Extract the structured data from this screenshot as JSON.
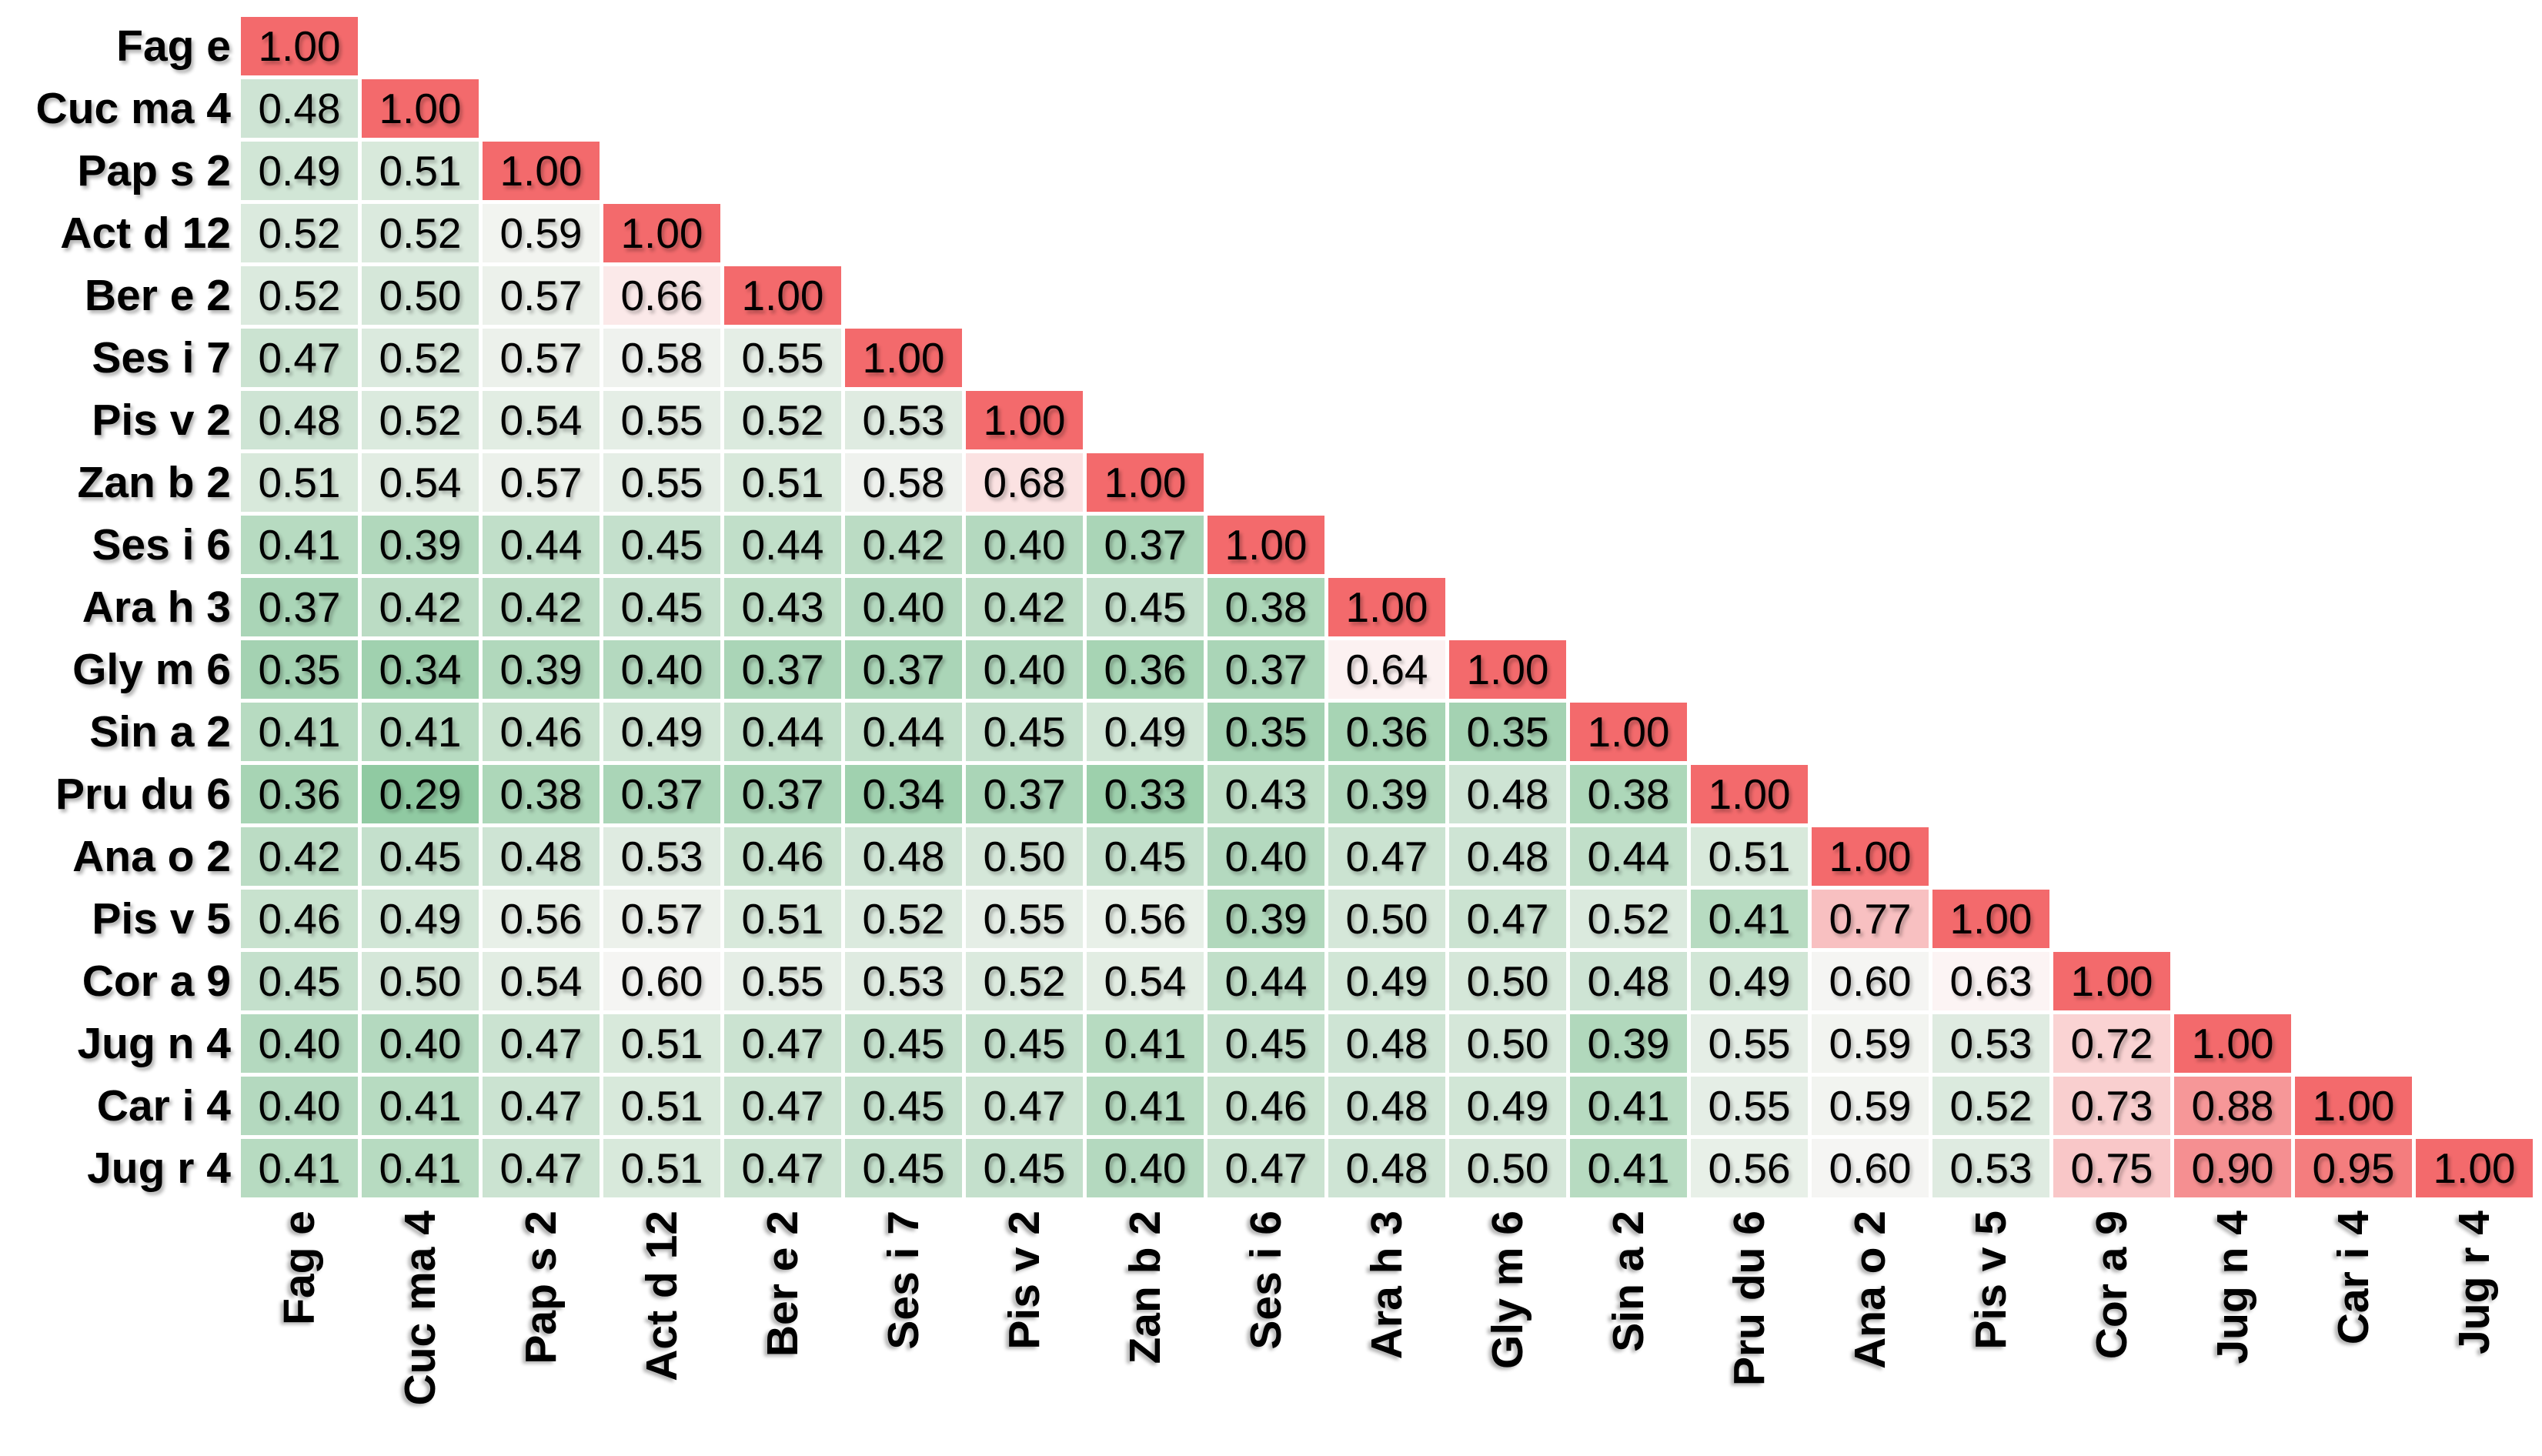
{
  "figure": {
    "background_color": "#ffffff",
    "description": "Lower-triangular correlation matrix heatmap of allergen components"
  },
  "chart_data": {
    "type": "heatmap",
    "variant": "lower-triangular-correlation",
    "value_format": "0.00",
    "grid": false,
    "labels": [
      "Fag e",
      "Cuc ma 4",
      "Pap s 2",
      "Act d 12",
      "Ber e 2",
      "Ses i 7",
      "Pis v 2",
      "Zan b 2",
      "Ses i 6",
      "Ara h 3",
      "Gly m 6",
      "Sin a 2",
      "Pru du 6",
      "Ana o 2",
      "Pis v 5",
      "Cor a 9",
      "Jug n 4",
      "Car i 4",
      "Jug r 4"
    ],
    "matrix": [
      [
        1.0
      ],
      [
        0.48,
        1.0
      ],
      [
        0.49,
        0.51,
        1.0
      ],
      [
        0.52,
        0.52,
        0.59,
        1.0
      ],
      [
        0.52,
        0.5,
        0.57,
        0.66,
        1.0
      ],
      [
        0.47,
        0.52,
        0.57,
        0.58,
        0.55,
        1.0
      ],
      [
        0.48,
        0.52,
        0.54,
        0.55,
        0.52,
        0.53,
        1.0
      ],
      [
        0.51,
        0.54,
        0.57,
        0.55,
        0.51,
        0.58,
        0.68,
        1.0
      ],
      [
        0.41,
        0.39,
        0.44,
        0.45,
        0.44,
        0.42,
        0.4,
        0.37,
        1.0
      ],
      [
        0.37,
        0.42,
        0.42,
        0.45,
        0.43,
        0.4,
        0.42,
        0.45,
        0.38,
        1.0
      ],
      [
        0.35,
        0.34,
        0.39,
        0.4,
        0.37,
        0.37,
        0.4,
        0.36,
        0.37,
        0.64,
        1.0
      ],
      [
        0.41,
        0.41,
        0.46,
        0.49,
        0.44,
        0.44,
        0.45,
        0.49,
        0.35,
        0.36,
        0.35,
        1.0
      ],
      [
        0.36,
        0.29,
        0.38,
        0.37,
        0.37,
        0.34,
        0.37,
        0.33,
        0.43,
        0.39,
        0.48,
        0.38,
        1.0
      ],
      [
        0.42,
        0.45,
        0.48,
        0.53,
        0.46,
        0.48,
        0.5,
        0.45,
        0.4,
        0.47,
        0.48,
        0.44,
        0.51,
        1.0
      ],
      [
        0.46,
        0.49,
        0.56,
        0.57,
        0.51,
        0.52,
        0.55,
        0.56,
        0.39,
        0.5,
        0.47,
        0.52,
        0.41,
        0.77,
        1.0
      ],
      [
        0.45,
        0.5,
        0.54,
        0.6,
        0.55,
        0.53,
        0.52,
        0.54,
        0.44,
        0.49,
        0.5,
        0.48,
        0.49,
        0.6,
        0.63,
        1.0
      ],
      [
        0.4,
        0.4,
        0.47,
        0.51,
        0.47,
        0.45,
        0.45,
        0.41,
        0.45,
        0.48,
        0.5,
        0.39,
        0.55,
        0.59,
        0.53,
        0.72,
        1.0
      ],
      [
        0.4,
        0.41,
        0.47,
        0.51,
        0.47,
        0.45,
        0.47,
        0.41,
        0.46,
        0.48,
        0.49,
        0.41,
        0.55,
        0.59,
        0.52,
        0.73,
        0.88,
        1.0
      ],
      [
        0.41,
        0.41,
        0.47,
        0.51,
        0.47,
        0.45,
        0.45,
        0.4,
        0.47,
        0.48,
        0.5,
        0.41,
        0.56,
        0.6,
        0.53,
        0.75,
        0.9,
        0.95,
        1.0
      ]
    ],
    "colorscale": {
      "stops": [
        {
          "v": 0.29,
          "color": "#90caa2"
        },
        {
          "v": 0.62,
          "color": "#fcf8f8"
        },
        {
          "v": 1.0,
          "color": "#f36a6c"
        }
      ],
      "cell_text_color": "#000000",
      "gap_color": "#ffffff"
    },
    "legend": "none",
    "title": ""
  }
}
